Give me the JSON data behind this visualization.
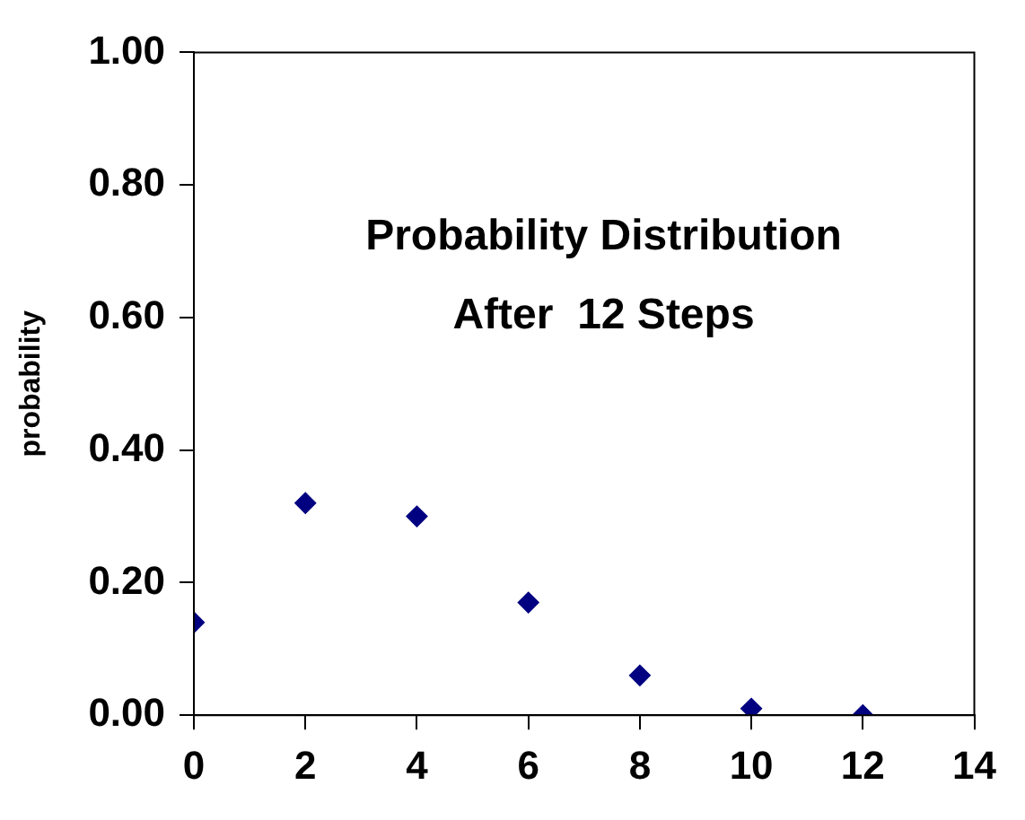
{
  "chart_data": {
    "type": "scatter",
    "title": "Probability Distribution\nAfter  12 Steps",
    "ylabel": "probability",
    "x": [
      0,
      2,
      4,
      6,
      8,
      10,
      12
    ],
    "series": [
      {
        "color": "#000080",
        "values": [
          0.14,
          0.32,
          0.3,
          0.17,
          0.06,
          0.01,
          0.0
        ]
      }
    ],
    "xlim": [
      0,
      14
    ],
    "xticks": [
      0,
      2,
      4,
      6,
      8,
      10,
      12,
      14
    ],
    "ylim": [
      0,
      1
    ],
    "yticks": [
      {
        "value": 0,
        "label": "0.00"
      },
      {
        "value": 0.2,
        "label": "0.20"
      },
      {
        "value": 0.4,
        "label": "0.40"
      },
      {
        "value": 0.6,
        "label": "0.60"
      },
      {
        "value": 0.8,
        "label": "0.80"
      },
      {
        "value": 1,
        "label": "1.00"
      }
    ],
    "grid": false,
    "legend": false,
    "marker": "diamond"
  }
}
